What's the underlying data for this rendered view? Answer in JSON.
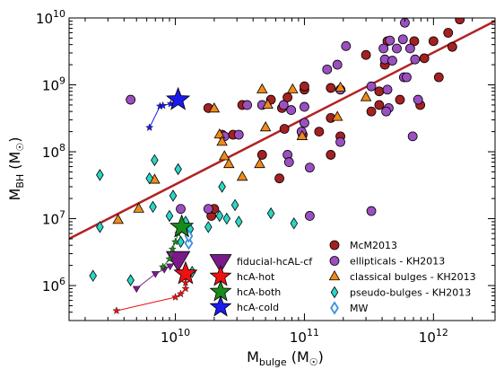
{
  "chart_data": {
    "type": "scatter",
    "title": "",
    "xlabel": "M_bulge (M_sun)",
    "ylabel": "M_BH (M_sun)",
    "xlabel_parts": {
      "main": "M",
      "sub": "bulge",
      "unit_open": " (M",
      "unit_sym": "☉",
      "unit_close": ")"
    },
    "ylabel_parts": {
      "main": "M",
      "sub": "BH",
      "unit_open": " (M",
      "unit_sym": "☉",
      "unit_close": ")"
    },
    "xscale": "log",
    "yscale": "log",
    "xlim": [
      1500000000.0,
      3000000000000.0
    ],
    "ylim": [
      300000.0,
      10000000000.0
    ],
    "x_ticks": [
      {
        "value": 10000000000.0,
        "base": "10",
        "exp": "10"
      },
      {
        "value": 100000000000.0,
        "base": "10",
        "exp": "11"
      },
      {
        "value": 1000000000000.0,
        "base": "10",
        "exp": "12"
      }
    ],
    "y_ticks": [
      {
        "value": 1000000.0,
        "base": "10",
        "exp": "6"
      },
      {
        "value": 10000000.0,
        "base": "10",
        "exp": "7"
      },
      {
        "value": 100000000.0,
        "base": "10",
        "exp": "8"
      },
      {
        "value": 1000000000.0,
        "base": "10",
        "exp": "9"
      },
      {
        "value": 10000000000.0,
        "base": "10",
        "exp": "10"
      }
    ],
    "grid": false,
    "legend_placement": "bottom-center",
    "fit_line": {
      "color": "#b22222",
      "points": [
        [
          1500000000.0,
          5000000.0
        ],
        [
          3000000000000.0,
          9000000000.0
        ]
      ]
    },
    "series": [
      {
        "name": "McM2013",
        "marker": "circle",
        "color": "#a52020",
        "points": [
          [
            18000000000.0,
            450000000.0
          ],
          [
            19000000000.0,
            11000000.0
          ],
          [
            20000000000.0,
            14000000.0
          ],
          [
            23000000000.0,
            180000000.0
          ],
          [
            28000000000.0,
            180000000.0
          ],
          [
            33000000000.0,
            500000000.0
          ],
          [
            47000000000.0,
            90000000.0
          ],
          [
            55000000000.0,
            600000000.0
          ],
          [
            64000000000.0,
            40000000.0
          ],
          [
            67000000000.0,
            450000000.0
          ],
          [
            70000000000.0,
            220000000.0
          ],
          [
            74000000000.0,
            650000000.0
          ],
          [
            97000000000.0,
            180000000.0
          ],
          [
            100000000000.0,
            850000000.0
          ],
          [
            100000000000.0,
            950000000.0
          ],
          [
            130000000000.0,
            200000000.0
          ],
          [
            160000000000.0,
            900000000.0
          ],
          [
            160000000000.0,
            320000000.0
          ],
          [
            160000000000.0,
            90000000.0
          ],
          [
            190000000000.0,
            170000000.0
          ],
          [
            190000000000.0,
            850000000.0
          ],
          [
            300000000000.0,
            2800000000.0
          ],
          [
            330000000000.0,
            400000000.0
          ],
          [
            380000000000.0,
            500000000.0
          ],
          [
            380000000000.0,
            800000000.0
          ],
          [
            420000000000.0,
            2000000000.0
          ],
          [
            440000000000.0,
            4500000000.0
          ],
          [
            550000000000.0,
            600000000.0
          ],
          [
            710000000000.0,
            4500000000.0
          ],
          [
            790000000000.0,
            500000000.0
          ],
          [
            850000000000.0,
            2500000000.0
          ],
          [
            1000000000000.0,
            4500000000.0
          ],
          [
            1100000000000.0,
            1300000000.0
          ],
          [
            1300000000000.0,
            6000000000.0
          ],
          [
            1400000000000.0,
            3700000000.0
          ],
          [
            1600000000000.0,
            9500000000.0
          ]
        ]
      },
      {
        "name": "ellipticals - KH2013",
        "marker": "circle",
        "color": "#9b4fc0",
        "points": [
          [
            4500000000.0,
            600000000.0
          ],
          [
            11000000000.0,
            14000000.0
          ],
          [
            18000000000.0,
            14000000.0
          ],
          [
            24000000000.0,
            170000000.0
          ],
          [
            31000000000.0,
            180000000.0
          ],
          [
            36000000000.0,
            500000000.0
          ],
          [
            47000000000.0,
            500000000.0
          ],
          [
            69000000000.0,
            500000000.0
          ],
          [
            74000000000.0,
            90000000.0
          ],
          [
            76000000000.0,
            70000000.0
          ],
          [
            79000000000.0,
            420000000.0
          ],
          [
            95000000000.0,
            200000000.0
          ],
          [
            100000000000.0,
            270000000.0
          ],
          [
            100000000000.0,
            470000000.0
          ],
          [
            110000000000.0,
            58000000.0
          ],
          [
            110000000000.0,
            11000000.0
          ],
          [
            150000000000.0,
            1700000000.0
          ],
          [
            180000000000.0,
            2000000000.0
          ],
          [
            190000000000.0,
            140000000.0
          ],
          [
            190000000000.0,
            850000000.0
          ],
          [
            210000000000.0,
            3800000000.0
          ],
          [
            330000000000.0,
            13000000.0
          ],
          [
            330000000000.0,
            950000000.0
          ],
          [
            410000000000.0,
            3500000000.0
          ],
          [
            420000000000.0,
            2400000000.0
          ],
          [
            440000000000.0,
            850000000.0
          ],
          [
            450000000000.0,
            450000000.0
          ],
          [
            460000000000.0,
            4600000000.0
          ],
          [
            480000000000.0,
            2300000000.0
          ],
          [
            520000000000.0,
            3500000000.0
          ],
          [
            580000000000.0,
            4800000000.0
          ],
          [
            590000000000.0,
            1300000000.0
          ],
          [
            600000000000.0,
            8500000000.0
          ],
          [
            660000000000.0,
            3500000000.0
          ],
          [
            690000000000.0,
            170000000.0
          ],
          [
            720000000000.0,
            2400000000.0
          ],
          [
            760000000000.0,
            600000000.0
          ],
          [
            430000000000.0,
            400000000.0
          ],
          [
            620000000000.0,
            1300000000.0
          ]
        ]
      },
      {
        "name": "classical bulges - KH2013",
        "marker": "triangle",
        "color": "#f08a1a",
        "points": [
          [
            3600000000.0,
            9500000.0
          ],
          [
            5200000000.0,
            14000000.0
          ],
          [
            6900000000.0,
            38000000.0
          ],
          [
            20000000000.0,
            440000000.0
          ],
          [
            22000000000.0,
            180000000.0
          ],
          [
            23000000000.0,
            140000000.0
          ],
          [
            24000000000.0,
            85000000.0
          ],
          [
            26000000000.0,
            65000000.0
          ],
          [
            33000000000.0,
            42000000.0
          ],
          [
            45000000000.0,
            65000000.0
          ],
          [
            47000000000.0,
            850000000.0
          ],
          [
            50000000000.0,
            230000000.0
          ],
          [
            52000000000.0,
            500000000.0
          ],
          [
            81000000000.0,
            850000000.0
          ],
          [
            96000000000.0,
            170000000.0
          ],
          [
            180000000000.0,
            330000000.0
          ],
          [
            300000000000.0,
            650000000.0
          ],
          [
            190000000000.0,
            900000000.0
          ]
        ]
      },
      {
        "name": "pseudo-bulges - KH2013",
        "marker": "diamond",
        "color": "#2ad6c6",
        "points": [
          [
            2300000000.0,
            1400000.0
          ],
          [
            2600000000.0,
            7500000.0
          ],
          [
            2600000000.0,
            45000000.0
          ],
          [
            4500000000.0,
            1200000.0
          ],
          [
            6300000000.0,
            40000000.0
          ],
          [
            6900000000.0,
            75000000.0
          ],
          [
            6700000000.0,
            15000000.0
          ],
          [
            9000000000.0,
            11000000.0
          ],
          [
            9600000000.0,
            22000000.0
          ],
          [
            10500000000.0,
            55000000.0
          ],
          [
            11000000000.0,
            4500000.0
          ],
          [
            12000000000.0,
            9000000.0
          ],
          [
            13000000000.0,
            7000000.0
          ],
          [
            13500000000.0,
            1600000.0
          ],
          [
            18000000000.0,
            7500000.0
          ],
          [
            22000000000.0,
            11000000.0
          ],
          [
            23000000000.0,
            30000000.0
          ],
          [
            25000000000.0,
            10000000.0
          ],
          [
            29000000000.0,
            16000000.0
          ],
          [
            31000000000.0,
            9000000.0
          ],
          [
            83000000000.0,
            8500000.0
          ],
          [
            55000000000.0,
            12000000.0
          ]
        ]
      },
      {
        "name": "MW",
        "marker": "diamond-open",
        "color": "#3b8fe0",
        "points": [
          [
            12700000000.0,
            4300000.0
          ],
          [
            12700000000.0,
            5500000.0
          ]
        ]
      }
    ],
    "tracks": [
      {
        "name": "fiducial-hcAL-cf",
        "color": "#7a1a8a",
        "marker": "triangle-down",
        "points": [
          [
            5000000000.0,
            900000.0
          ],
          [
            7000000000.0,
            1500000.0
          ],
          [
            8200000000.0,
            1750000.0
          ],
          [
            9100000000.0,
            1950000.0
          ],
          [
            10500000000.0,
            2500000.0
          ]
        ],
        "end": [
          10500000000.0,
          2500000.0
        ]
      },
      {
        "name": "hcA-hot",
        "color": "#ee1111",
        "marker": "star",
        "points": [
          [
            3500000000.0,
            420000.0
          ],
          [
            10000000000.0,
            670000.0
          ],
          [
            11000000000.0,
            750000.0
          ],
          [
            12000000000.0,
            900000.0
          ],
          [
            12000000000.0,
            1100000.0
          ],
          [
            12000000000.0,
            1500000.0
          ]
        ],
        "end": [
          12000000000.0,
          1500000.0
        ]
      },
      {
        "name": "hcA-both",
        "color": "#1a8a1a",
        "marker": "star",
        "points": [
          [
            8000000000.0,
            1900000.0
          ],
          [
            9000000000.0,
            2500000.0
          ],
          [
            9500000000.0,
            3500000.0
          ],
          [
            10000000000.0,
            4500000.0
          ],
          [
            10500000000.0,
            6000000.0
          ],
          [
            11200000000.0,
            7500000.0
          ]
        ],
        "end": [
          11200000000.0,
          7500000.0
        ]
      },
      {
        "name": "hcA-cold",
        "color": "#1a1aee",
        "marker": "star",
        "points": [
          [
            6300000000.0,
            230000000.0
          ],
          [
            7600000000.0,
            480000000.0
          ],
          [
            8000000000.0,
            490000000.0
          ],
          [
            9200000000.0,
            520000000.0
          ],
          [
            10500000000.0,
            600000000.0
          ]
        ],
        "end": [
          10500000000.0,
          600000000.0
        ]
      }
    ]
  }
}
